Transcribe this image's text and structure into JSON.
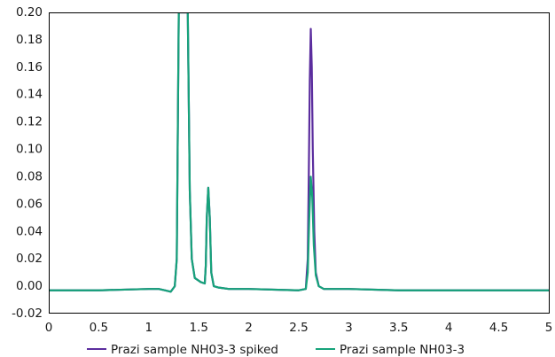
{
  "chart_data": {
    "type": "line",
    "title": "",
    "xlabel": "",
    "ylabel": "",
    "xlim": [
      0,
      5
    ],
    "ylim": [
      -0.02,
      0.2
    ],
    "x_ticks": [
      "0",
      "0.5",
      "1",
      "1.5",
      "2",
      "2.5",
      "3",
      "3.5",
      "4",
      "4.5",
      "5"
    ],
    "y_ticks": [
      "0.20",
      "0.18",
      "0.16",
      "0.14",
      "0.12",
      "0.10",
      "0.08",
      "0.06",
      "0.04",
      "0.02",
      "0.00",
      "-0.02"
    ],
    "grid": false,
    "legend_position": "bottom",
    "series": [
      {
        "name": "Prazi sample NH03-3 spiked",
        "color": "#5b2d9e",
        "points": [
          [
            0,
            -0.003
          ],
          [
            0.5,
            -0.003
          ],
          [
            1.0,
            -0.002
          ],
          [
            1.1,
            -0.002
          ],
          [
            1.16,
            -0.003
          ],
          [
            1.22,
            -0.004
          ],
          [
            1.26,
            0.0
          ],
          [
            1.28,
            0.02
          ],
          [
            1.3,
            0.2
          ],
          [
            1.33,
            0.2
          ],
          [
            1.35,
            0.2
          ],
          [
            1.38,
            0.2
          ],
          [
            1.39,
            0.2
          ],
          [
            1.41,
            0.07
          ],
          [
            1.43,
            0.02
          ],
          [
            1.46,
            0.006
          ],
          [
            1.52,
            0.003
          ],
          [
            1.56,
            0.002
          ],
          [
            1.57,
            0.015
          ],
          [
            1.58,
            0.05
          ],
          [
            1.595,
            0.072
          ],
          [
            1.61,
            0.05
          ],
          [
            1.625,
            0.01
          ],
          [
            1.65,
            0.0
          ],
          [
            1.7,
            -0.001
          ],
          [
            1.8,
            -0.002
          ],
          [
            2.0,
            -0.002
          ],
          [
            2.5,
            -0.003
          ],
          [
            2.57,
            -0.002
          ],
          [
            2.59,
            0.02
          ],
          [
            2.6,
            0.08
          ],
          [
            2.61,
            0.15
          ],
          [
            2.62,
            0.188
          ],
          [
            2.63,
            0.16
          ],
          [
            2.64,
            0.1
          ],
          [
            2.655,
            0.04
          ],
          [
            2.67,
            0.01
          ],
          [
            2.7,
            0.0
          ],
          [
            2.75,
            -0.002
          ],
          [
            3.0,
            -0.002
          ],
          [
            3.5,
            -0.003
          ],
          [
            4.0,
            -0.003
          ],
          [
            4.5,
            -0.003
          ],
          [
            5.0,
            -0.003
          ]
        ]
      },
      {
        "name": "Prazi sample NH03-3",
        "color": "#16a37a",
        "points": [
          [
            0,
            -0.003
          ],
          [
            0.5,
            -0.003
          ],
          [
            1.0,
            -0.002
          ],
          [
            1.1,
            -0.002
          ],
          [
            1.16,
            -0.003
          ],
          [
            1.22,
            -0.004
          ],
          [
            1.26,
            0.0
          ],
          [
            1.28,
            0.02
          ],
          [
            1.3,
            0.2
          ],
          [
            1.33,
            0.2
          ],
          [
            1.35,
            0.2
          ],
          [
            1.38,
            0.2
          ],
          [
            1.39,
            0.2
          ],
          [
            1.41,
            0.07
          ],
          [
            1.43,
            0.02
          ],
          [
            1.46,
            0.006
          ],
          [
            1.52,
            0.003
          ],
          [
            1.56,
            0.002
          ],
          [
            1.57,
            0.015
          ],
          [
            1.58,
            0.05
          ],
          [
            1.595,
            0.072
          ],
          [
            1.61,
            0.05
          ],
          [
            1.625,
            0.01
          ],
          [
            1.65,
            0.0
          ],
          [
            1.7,
            -0.001
          ],
          [
            1.8,
            -0.002
          ],
          [
            2.0,
            -0.002
          ],
          [
            2.5,
            -0.003
          ],
          [
            2.57,
            -0.002
          ],
          [
            2.59,
            0.01
          ],
          [
            2.605,
            0.05
          ],
          [
            2.62,
            0.08
          ],
          [
            2.635,
            0.065
          ],
          [
            2.65,
            0.03
          ],
          [
            2.67,
            0.008
          ],
          [
            2.7,
            0.0
          ],
          [
            2.75,
            -0.002
          ],
          [
            3.0,
            -0.002
          ],
          [
            3.5,
            -0.003
          ],
          [
            4.0,
            -0.003
          ],
          [
            4.5,
            -0.003
          ],
          [
            5.0,
            -0.003
          ]
        ]
      }
    ]
  }
}
